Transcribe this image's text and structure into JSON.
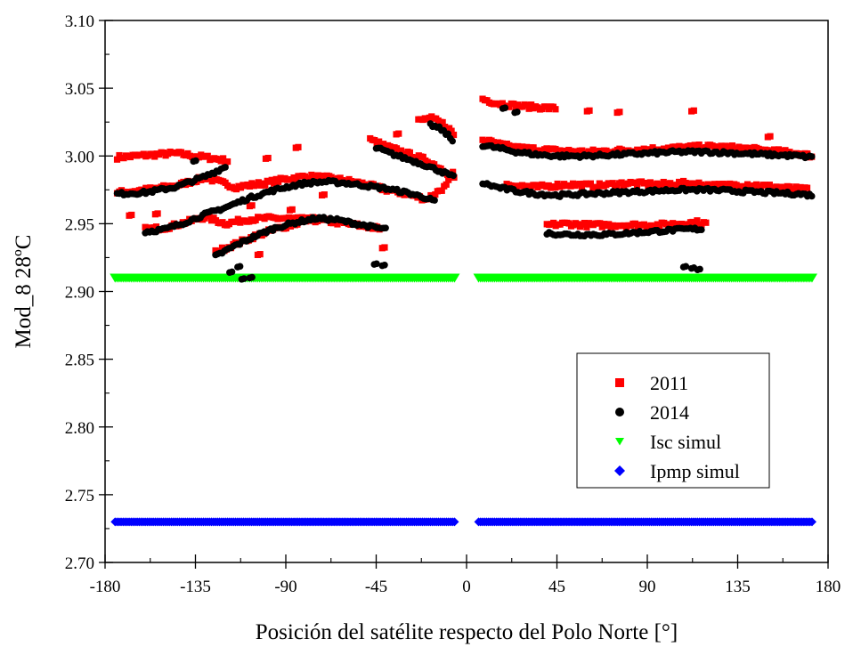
{
  "chart_data": {
    "type": "scatter",
    "xlabel": "Posición del satélite respecto del Polo Norte [°]",
    "ylabel": "Mod_8 28ºC",
    "xlim": [
      -180,
      180
    ],
    "ylim": [
      2.7,
      3.1
    ],
    "x_ticks": [
      -180,
      -135,
      -90,
      -45,
      0,
      45,
      90,
      135,
      180
    ],
    "x_tick_labels": [
      "-180",
      "-135",
      "-90",
      "-45",
      "0",
      "45",
      "90",
      "135",
      "180"
    ],
    "y_ticks": [
      2.7,
      2.75,
      2.8,
      2.85,
      2.9,
      2.95,
      3.0,
      3.05,
      3.1
    ],
    "y_tick_labels": [
      "2.70",
      "2.75",
      "2.80",
      "2.85",
      "2.90",
      "2.95",
      "3.00",
      "3.05",
      "3.10"
    ],
    "grid": false,
    "legend_position": "lower-right",
    "series": [
      {
        "name": "2011",
        "marker": "square",
        "color": "#ff0000",
        "segments": [
          {
            "x": [
              -174,
              -165,
              -155,
              -145,
              -135,
              -125,
              -118
            ],
            "y": [
              2.999,
              3.0,
              3.001,
              3.002,
              3.0,
              2.998,
              2.996
            ]
          },
          {
            "x": [
              -174,
              -160,
              -145,
              -130,
              -115,
              -100,
              -90,
              -80,
              -70,
              -60,
              -50,
              -40,
              -30,
              -20,
              -10,
              -6
            ],
            "y": [
              2.973,
              2.975,
              2.978,
              2.984,
              2.977,
              2.98,
              2.983,
              2.985,
              2.984,
              2.982,
              2.979,
              2.975,
              2.972,
              2.968,
              2.978,
              2.99
            ]
          },
          {
            "x": [
              -160,
              -150,
              -140,
              -130,
              -120,
              -110,
              -100,
              -90,
              -80,
              -70,
              -60,
              -50,
              -42
            ],
            "y": [
              2.946,
              2.947,
              2.951,
              2.955,
              2.95,
              2.953,
              2.954,
              2.954,
              2.953,
              2.952,
              2.95,
              2.948,
              2.946
            ]
          },
          {
            "x": [
              -125,
              -115,
              -105,
              -95,
              -85,
              -75
            ],
            "y": [
              2.929,
              2.935,
              2.941,
              2.946,
              2.95,
              2.955
            ]
          },
          {
            "x": [
              -48,
              -40,
              -30,
              -20,
              -12,
              -6
            ],
            "y": [
              3.012,
              3.007,
              3.002,
              2.997,
              2.99,
              2.984
            ]
          },
          {
            "x": [
              -24,
              -18,
              -12,
              -8,
              -6
            ],
            "y": [
              3.026,
              3.028,
              3.024,
              3.019,
              3.015
            ]
          },
          {
            "x": [
              8,
              15,
              25,
              35,
              45
            ],
            "y": [
              3.042,
              3.039,
              3.037,
              3.036,
              3.035
            ]
          },
          {
            "x": [
              8,
              15,
              25,
              35,
              45,
              60,
              75,
              90,
              105,
              120,
              135,
              150,
              165,
              172
            ],
            "y": [
              3.012,
              3.009,
              3.006,
              3.005,
              3.004,
              3.003,
              3.004,
              3.005,
              3.006,
              3.007,
              3.006,
              3.004,
              3.002,
              3.0
            ]
          },
          {
            "x": [
              20,
              35,
              50,
              65,
              80,
              95,
              110,
              125,
              140,
              155,
              170
            ],
            "y": [
              2.979,
              2.977,
              2.979,
              2.978,
              2.98,
              2.979,
              2.98,
              2.978,
              2.979,
              2.977,
              2.975
            ]
          },
          {
            "x": [
              40,
              50,
              60,
              95,
              105,
              115,
              120
            ],
            "y": [
              2.949,
              2.95,
              2.949,
              2.949,
              2.95,
              2.951,
              2.95
            ]
          }
        ],
        "isolated": [
          {
            "x": -168,
            "y": 2.956
          },
          {
            "x": -155,
            "y": 2.957
          },
          {
            "x": -142,
            "y": 2.98
          },
          {
            "x": -108,
            "y": 2.963
          },
          {
            "x": -104,
            "y": 2.927
          },
          {
            "x": -100,
            "y": 2.998
          },
          {
            "x": -88,
            "y": 2.96
          },
          {
            "x": -85,
            "y": 3.006
          },
          {
            "x": -72,
            "y": 2.971
          },
          {
            "x": -42,
            "y": 2.932
          },
          {
            "x": -35,
            "y": 3.016
          },
          {
            "x": 60,
            "y": 3.033
          },
          {
            "x": 75,
            "y": 3.032
          },
          {
            "x": 112,
            "y": 3.033
          },
          {
            "x": 150,
            "y": 3.014
          }
        ]
      },
      {
        "name": "2014",
        "marker": "circle",
        "color": "#000000",
        "segments": [
          {
            "x": [
              -174,
              -160,
              -145,
              -130,
              -120
            ],
            "y": [
              2.972,
              2.973,
              2.977,
              2.985,
              2.992
            ]
          },
          {
            "x": [
              -160,
              -150,
              -140,
              -130,
              -120,
              -110,
              -100,
              -90,
              -80,
              -70,
              -60,
              -50,
              -40,
              -30,
              -20,
              -15
            ],
            "y": [
              2.944,
              2.946,
              2.951,
              2.957,
              2.962,
              2.968,
              2.973,
              2.977,
              2.98,
              2.981,
              2.98,
              2.978,
              2.976,
              2.973,
              2.969,
              2.966
            ]
          },
          {
            "x": [
              -125,
              -115,
              -105,
              -95,
              -85,
              -75,
              -65,
              -55,
              -45,
              -40
            ],
            "y": [
              2.926,
              2.934,
              2.941,
              2.947,
              2.951,
              2.954,
              2.953,
              2.95,
              2.947,
              2.946
            ]
          },
          {
            "x": [
              -45,
              -38,
              -30,
              -22,
              -15,
              -10,
              -6
            ],
            "y": [
              3.006,
              3.002,
              2.998,
              2.994,
              2.99,
              2.987,
              2.984
            ]
          },
          {
            "x": [
              -18,
              -13,
              -9,
              -6
            ],
            "y": [
              3.023,
              3.02,
              3.015,
              3.009
            ]
          },
          {
            "x": [
              8,
              15,
              25,
              35,
              45,
              60,
              75,
              90,
              105,
              120,
              135,
              150,
              165,
              172
            ],
            "y": [
              3.008,
              3.006,
              3.003,
              3.001,
              3.0,
              3.0,
              3.001,
              3.002,
              3.003,
              3.003,
              3.002,
              3.001,
              3.0,
              2.999
            ]
          },
          {
            "x": [
              8,
              15,
              25,
              35,
              45,
              60,
              75,
              90,
              105,
              120,
              135,
              150,
              165,
              172
            ],
            "y": [
              2.98,
              2.977,
              2.974,
              2.972,
              2.971,
              2.972,
              2.973,
              2.974,
              2.975,
              2.975,
              2.974,
              2.973,
              2.972,
              2.971
            ]
          },
          {
            "x": [
              40,
              50,
              60,
              70,
              80,
              90,
              100,
              110,
              118
            ],
            "y": [
              2.943,
              2.942,
              2.942,
              2.942,
              2.943,
              2.944,
              2.945,
              2.946,
              2.946
            ]
          }
        ],
        "isolated": [
          {
            "x": -136,
            "y": 2.996
          },
          {
            "x": -118,
            "y": 2.914
          },
          {
            "x": -114,
            "y": 2.918
          },
          {
            "x": -112,
            "y": 2.909
          },
          {
            "x": -108,
            "y": 2.91
          },
          {
            "x": -46,
            "y": 2.92
          },
          {
            "x": -42,
            "y": 2.919
          },
          {
            "x": 18,
            "y": 3.035
          },
          {
            "x": 24,
            "y": 3.032
          },
          {
            "x": 108,
            "y": 2.918
          },
          {
            "x": 112,
            "y": 2.917
          },
          {
            "x": 115,
            "y": 2.916
          }
        ]
      },
      {
        "name": "Isc simul",
        "marker": "triangle-down",
        "color": "#00ff00",
        "ranges": [
          {
            "x": [
              -175,
              -6
            ],
            "y": 2.91
          },
          {
            "x": 6,
            "x_end": 172,
            "y": 2.91
          }
        ]
      },
      {
        "name": "Ipmp simul",
        "marker": "diamond",
        "color": "#0000ff",
        "ranges": [
          {
            "x": [
              -175,
              -6
            ],
            "y": 2.73
          },
          {
            "x": 6,
            "x_end": 172,
            "y": 2.73
          }
        ]
      }
    ]
  }
}
